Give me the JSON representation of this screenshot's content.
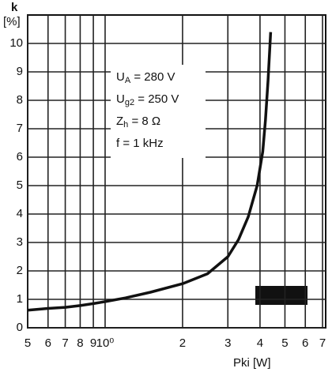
{
  "chart_data": {
    "type": "line",
    "y_label": "k",
    "y_unit": "[%]",
    "x_label": "Pki [W]",
    "x": [
      0.5,
      0.6,
      0.7,
      0.8,
      0.9,
      1,
      1.2,
      1.5,
      2,
      2.5,
      3,
      3.3,
      3.6,
      3.9,
      4.1,
      4.2,
      4.3,
      4.4
    ],
    "series": [
      {
        "color": "#111111",
        "values": [
          0.62,
          0.68,
          0.72,
          0.78,
          0.85,
          0.92,
          1.05,
          1.25,
          1.55,
          1.9,
          2.5,
          3.1,
          3.9,
          5.0,
          6.2,
          7.3,
          8.7,
          10.4
        ]
      }
    ],
    "xlog": true,
    "xlim": [
      0.5,
      7.2
    ],
    "ylim": [
      0,
      11
    ],
    "xticks": [
      {
        "value": 0.5,
        "label": "5"
      },
      {
        "value": 0.6,
        "label": "6"
      },
      {
        "value": 0.7,
        "label": "7"
      },
      {
        "value": 0.8,
        "label": "8"
      },
      {
        "value": 0.9,
        "label": "9"
      },
      {
        "value": 1,
        "label": "10⁰"
      },
      2,
      3,
      4,
      5,
      6,
      7
    ],
    "yticks": [
      0,
      1,
      2,
      3,
      4,
      5,
      6,
      7,
      8,
      9,
      10
    ],
    "grid": true,
    "annotations": [
      {
        "symbol": "U",
        "subscript": "A",
        "text": " = 280 V"
      },
      {
        "symbol": "U",
        "subscript": "g2",
        "text": " = 250 V"
      },
      {
        "symbol": "Z",
        "subscript": "h",
        "text": " = 8 Ω"
      },
      {
        "symbol": "f",
        "subscript": "",
        "text": " = 1 kHz"
      }
    ]
  }
}
